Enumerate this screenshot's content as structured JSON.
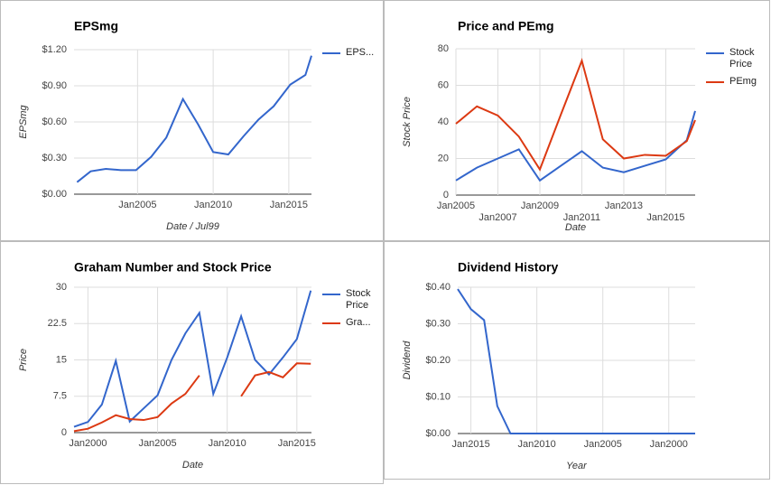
{
  "chart_data": [
    {
      "type": "line",
      "title": "EPSmg",
      "xlabel": "Date / Jul99",
      "ylabel": "EPSmg",
      "x": [
        2001,
        2001.9,
        2002.9,
        2003.9,
        2004.9,
        2005.9,
        2006.9,
        2008,
        2009,
        2010,
        2011,
        2012,
        2013,
        2014,
        2015.1,
        2016.1,
        2016.5
      ],
      "series": [
        {
          "name": "EPS...",
          "color": "#3366cc",
          "values": [
            0.1,
            0.19,
            0.21,
            0.2,
            0.2,
            0.31,
            0.47,
            0.79,
            0.58,
            0.35,
            0.33,
            0.48,
            0.62,
            0.73,
            0.91,
            0.99,
            1.15
          ]
        }
      ],
      "xlim": [
        2000.8,
        2016.5
      ],
      "xticks": [
        {
          "value": 2005,
          "label": "Jan2005"
        },
        {
          "value": 2010,
          "label": "Jan2010"
        },
        {
          "value": 2015,
          "label": "Jan2015"
        }
      ],
      "ylim": [
        0,
        1.2
      ],
      "yticks": [
        {
          "value": 0,
          "label": "$0.00"
        },
        {
          "value": 0.3,
          "label": "$0.30"
        },
        {
          "value": 0.6,
          "label": "$0.60"
        },
        {
          "value": 0.9,
          "label": "$0.90"
        },
        {
          "value": 1.2,
          "label": "$1.20"
        }
      ],
      "grid": true
    },
    {
      "type": "line",
      "title": "Price and PEmg",
      "xlabel": "Date",
      "ylabel": "Stock Price",
      "x": [
        2005,
        2006,
        2007,
        2008,
        2009,
        2010,
        2011,
        2012,
        2013,
        2014,
        2015,
        2016,
        2016.4
      ],
      "series": [
        {
          "name": "Stock Price",
          "color": "#3366cc",
          "values": [
            8,
            15,
            20,
            25,
            8,
            16,
            24,
            15,
            12.5,
            16,
            19.5,
            30,
            46
          ]
        },
        {
          "name": "PEmg",
          "color": "#dc3912",
          "values": [
            39,
            48.5,
            43.5,
            32,
            14,
            44,
            73.5,
            30.5,
            20,
            22,
            21.5,
            29.5,
            41
          ]
        }
      ],
      "xlim": [
        2005,
        2016.4
      ],
      "xticks": [
        {
          "value": 2005,
          "label": "Jan2005"
        },
        {
          "value": 2007,
          "label": "Jan2007"
        },
        {
          "value": 2009,
          "label": "Jan2009"
        },
        {
          "value": 2011,
          "label": "Jan2011"
        },
        {
          "value": 2013,
          "label": "Jan2013"
        },
        {
          "value": 2015,
          "label": "Jan2015"
        }
      ],
      "ylim": [
        0,
        80
      ],
      "yticks": [
        0,
        20,
        40,
        60,
        80
      ],
      "grid": true
    },
    {
      "type": "line",
      "title": "Graham Number and Stock Price",
      "xlabel": "Date",
      "ylabel": "Price",
      "x": [
        1999,
        2000,
        2001,
        2002,
        2003,
        2004,
        2005,
        2006,
        2007,
        2008,
        2009,
        2010,
        2011,
        2012,
        2013,
        2014,
        2015,
        2016
      ],
      "series": [
        {
          "name": "Stock Price",
          "color": "#3366cc",
          "values": [
            1.2,
            2.2,
            5.8,
            14.8,
            2.3,
            5,
            7.7,
            15,
            20.5,
            24.7,
            8,
            15.5,
            24,
            15,
            12,
            15.5,
            19.3,
            29.3
          ]
        },
        {
          "name": "Gra...",
          "color": "#dc3912",
          "values": [
            0.3,
            0.8,
            2.1,
            3.6,
            2.8,
            2.6,
            3.2,
            6,
            8,
            11.8,
            null,
            null,
            7.5,
            11.8,
            12.5,
            11.4,
            14.3,
            14.2
          ]
        }
      ],
      "xlim": [
        1999,
        2016.05
      ],
      "xticks": [
        {
          "value": 2000,
          "label": "Jan2000"
        },
        {
          "value": 2005,
          "label": "Jan2005"
        },
        {
          "value": 2010,
          "label": "Jan2010"
        },
        {
          "value": 2015,
          "label": "Jan2015"
        }
      ],
      "ylim": [
        0,
        30
      ],
      "yticks": [
        0,
        7.5,
        15,
        22.5,
        30
      ],
      "grid": true
    },
    {
      "type": "line",
      "title": "Dividend History",
      "xlabel": "Year",
      "ylabel": "Dividend",
      "x": [
        2016,
        2015,
        2014,
        2013,
        2012,
        2011,
        2010,
        2009,
        2008,
        2007,
        2006,
        2005,
        2004,
        2003,
        2002,
        2001,
        2000,
        1999,
        1998
      ],
      "series": [
        {
          "name": "Dividend",
          "color": "#3366cc",
          "values": [
            0.395,
            0.34,
            0.31,
            0.075,
            0,
            0,
            0,
            0,
            0,
            0,
            0,
            0,
            0,
            0,
            0,
            0,
            0,
            0,
            0
          ]
        }
      ],
      "xlim": [
        2016,
        1998
      ],
      "xticks": [
        {
          "value": 2015,
          "label": "Jan2015"
        },
        {
          "value": 2010,
          "label": "Jan2010"
        },
        {
          "value": 2005,
          "label": "Jan2005"
        },
        {
          "value": 2000,
          "label": "Jan2000"
        }
      ],
      "ylim": [
        0,
        0.4
      ],
      "yticks": [
        {
          "value": 0,
          "label": "$0.00"
        },
        {
          "value": 0.1,
          "label": "$0.10"
        },
        {
          "value": 0.2,
          "label": "$0.20"
        },
        {
          "value": 0.3,
          "label": "$0.30"
        },
        {
          "value": 0.4,
          "label": "$0.40"
        }
      ],
      "grid": true
    }
  ]
}
